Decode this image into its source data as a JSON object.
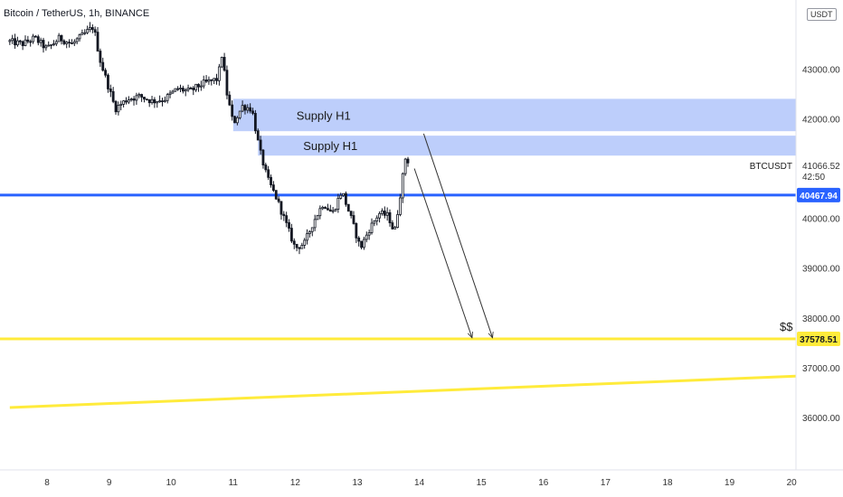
{
  "header": {
    "title": "Bitcoin / TetherUS, 1h, BINANCE",
    "currency": "USDT"
  },
  "colors": {
    "candle": "#131722",
    "supply_zone": "#a7bdfa",
    "support_line": "#2962ff",
    "liquidity_line": "#ffeb3b",
    "arrow": "#333333",
    "axis_text": "#333333"
  },
  "chart_data": {
    "type": "candlestick",
    "title": "Bitcoin / TetherUS, 1h, BINANCE",
    "symbol": "BTCUSDT",
    "ylim": [
      35000,
      44000
    ],
    "xlim": [
      7.4,
      20.1
    ],
    "x_ticks": [
      "8",
      "9",
      "10",
      "11",
      "12",
      "13",
      "14",
      "15",
      "16",
      "17",
      "18",
      "19",
      "20"
    ],
    "y_ticks": [
      "36000.00",
      "37000.00",
      "38000.00",
      "39000.00",
      "40000.00",
      "42000.00",
      "43000.00"
    ],
    "last_price": {
      "label": "BTCUSDT",
      "value": "41066.52",
      "countdown": "42:50"
    },
    "price_path": [
      [
        7.4,
        43550
      ],
      [
        7.6,
        43500
      ],
      [
        7.8,
        43620
      ],
      [
        8.0,
        43400
      ],
      [
        8.2,
        43620
      ],
      [
        8.4,
        43500
      ],
      [
        8.6,
        43700
      ],
      [
        8.75,
        43850
      ],
      [
        8.85,
        43200
      ],
      [
        9.0,
        42600
      ],
      [
        9.1,
        42200
      ],
      [
        9.3,
        42400
      ],
      [
        9.5,
        42450
      ],
      [
        9.7,
        42350
      ],
      [
        9.9,
        42400
      ],
      [
        10.1,
        42600
      ],
      [
        10.3,
        42550
      ],
      [
        10.5,
        42700
      ],
      [
        10.75,
        42800
      ],
      [
        10.82,
        43300
      ],
      [
        10.9,
        42500
      ],
      [
        11.0,
        41900
      ],
      [
        11.15,
        42250
      ],
      [
        11.3,
        42200
      ],
      [
        11.42,
        41400
      ],
      [
        11.55,
        40800
      ],
      [
        11.7,
        40400
      ],
      [
        11.85,
        39900
      ],
      [
        12.0,
        39400
      ],
      [
        12.15,
        39500
      ],
      [
        12.3,
        39950
      ],
      [
        12.45,
        40300
      ],
      [
        12.6,
        40100
      ],
      [
        12.75,
        40550
      ],
      [
        12.9,
        40000
      ],
      [
        13.05,
        39400
      ],
      [
        13.2,
        39800
      ],
      [
        13.35,
        40100
      ],
      [
        13.5,
        40050
      ],
      [
        13.6,
        39700
      ],
      [
        13.7,
        40550
      ],
      [
        13.78,
        41250
      ],
      [
        13.85,
        41066
      ]
    ],
    "zones": [
      {
        "label": "Supply H1",
        "x_from": 11.0,
        "x_to": 20.1,
        "y_low": 41750,
        "y_high": 42400
      },
      {
        "label": "Supply H1",
        "x_from": 11.4,
        "x_to": 20.1,
        "y_low": 41260,
        "y_high": 41660
      }
    ],
    "levels": [
      {
        "name": "support",
        "value": 40467.94,
        "label": "40467.94"
      },
      {
        "name": "liquidity",
        "value": 37578.51,
        "label": "37578.51",
        "note": "$$"
      }
    ],
    "trendline": {
      "x_from": 7.4,
      "y_from": 36200,
      "x_to": 20.1,
      "y_to": 36830
    },
    "arrows": [
      {
        "x_from": 14.07,
        "y_from": 41700,
        "x_to": 15.18,
        "y_to": 37600
      },
      {
        "x_from": 13.92,
        "y_from": 41000,
        "x_to": 14.85,
        "y_to": 37600
      }
    ]
  }
}
